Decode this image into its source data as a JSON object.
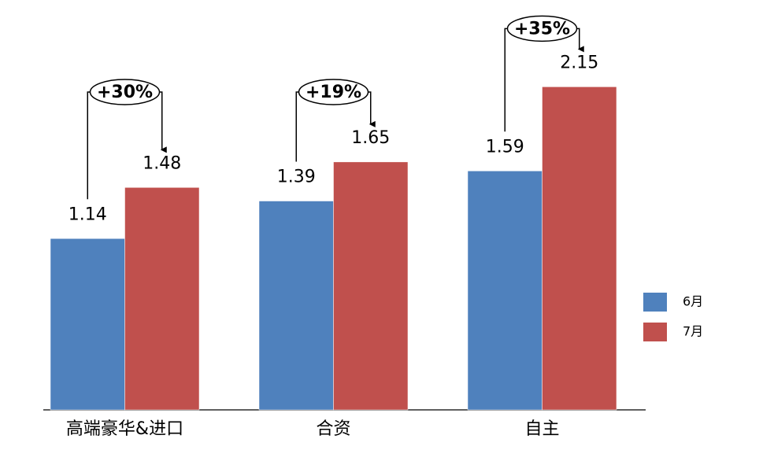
{
  "chart_data": {
    "type": "bar",
    "categories": [
      "高端豪华&进口",
      "合资",
      "自主"
    ],
    "series": [
      {
        "name": "6月",
        "color": "#4f81bd",
        "values": [
          1.14,
          1.39,
          1.59
        ]
      },
      {
        "name": "7月",
        "color": "#c0504d",
        "values": [
          1.48,
          1.65,
          2.15
        ]
      }
    ],
    "annotations": [
      "+30%",
      "+19%",
      "+35%"
    ],
    "ylim": [
      0,
      2.5
    ],
    "legend": "right"
  }
}
